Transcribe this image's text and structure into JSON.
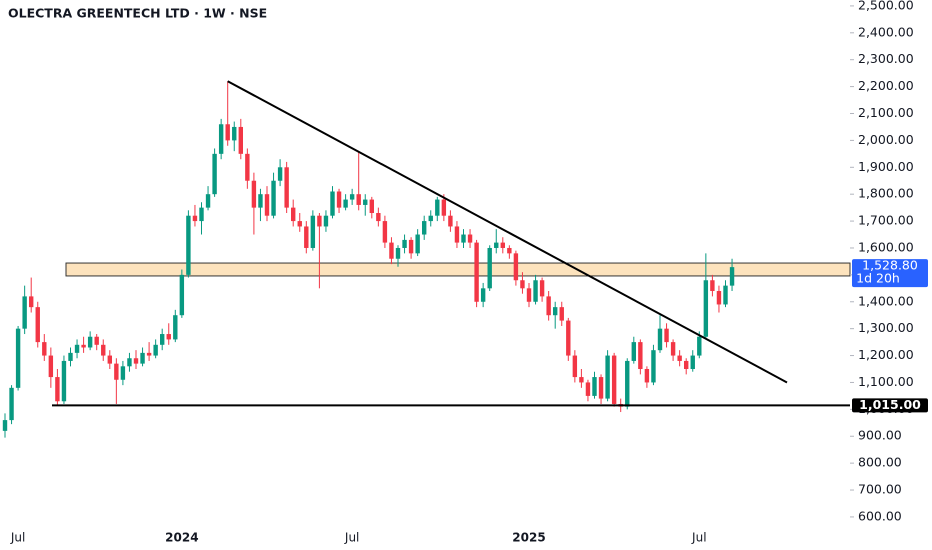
{
  "chart_data": {
    "type": "candlestick",
    "title": "OLECTRA GREENTECH LTD · 1W · NSE",
    "up_color": "#089981",
    "down_color": "#f23645",
    "categories": [
      null,
      null,
      "Jul",
      null,
      null,
      null,
      null,
      null,
      null,
      null,
      null,
      null,
      null,
      null,
      null,
      null,
      null,
      null,
      null,
      null,
      null,
      null,
      null,
      null,
      null,
      null,
      null,
      "2024",
      null,
      null,
      null,
      null,
      null,
      null,
      null,
      null,
      null,
      null,
      null,
      null,
      null,
      null,
      null,
      null,
      null,
      null,
      null,
      null,
      null,
      null,
      null,
      null,
      null,
      "Jul",
      null,
      null,
      null,
      null,
      null,
      null,
      null,
      null,
      null,
      null,
      null,
      null,
      null,
      null,
      null,
      null,
      null,
      null,
      null,
      null,
      null,
      null,
      null,
      null,
      null,
      null,
      "2025",
      null,
      null,
      null,
      null,
      null,
      null,
      null,
      null,
      null,
      null,
      null,
      null,
      null,
      null,
      null,
      null,
      null,
      null,
      null,
      null,
      null,
      null,
      null,
      null,
      null,
      "Jul",
      null,
      null,
      null,
      null,
      null
    ],
    "ohlc": [
      [
        920,
        985,
        895,
        960
      ],
      [
        960,
        1090,
        945,
        1080
      ],
      [
        1080,
        1310,
        1070,
        1300
      ],
      [
        1300,
        1460,
        1280,
        1420
      ],
      [
        1420,
        1490,
        1360,
        1380
      ],
      [
        1380,
        1400,
        1230,
        1250
      ],
      [
        1250,
        1280,
        1180,
        1200
      ],
      [
        1200,
        1230,
        1080,
        1120
      ],
      [
        1120,
        1150,
        1015,
        1030
      ],
      [
        1030,
        1200,
        1020,
        1180
      ],
      [
        1180,
        1230,
        1160,
        1210
      ],
      [
        1210,
        1260,
        1190,
        1240
      ],
      [
        1240,
        1270,
        1210,
        1230
      ],
      [
        1230,
        1290,
        1220,
        1270
      ],
      [
        1270,
        1280,
        1220,
        1240
      ],
      [
        1240,
        1260,
        1180,
        1200
      ],
      [
        1200,
        1220,
        1150,
        1170
      ],
      [
        1170,
        1190,
        1020,
        1110
      ],
      [
        1110,
        1180,
        1090,
        1160
      ],
      [
        1160,
        1210,
        1140,
        1190
      ],
      [
        1190,
        1220,
        1150,
        1170
      ],
      [
        1170,
        1230,
        1160,
        1210
      ],
      [
        1210,
        1250,
        1180,
        1200
      ],
      [
        1200,
        1260,
        1190,
        1240
      ],
      [
        1240,
        1300,
        1220,
        1280
      ],
      [
        1280,
        1320,
        1240,
        1260
      ],
      [
        1260,
        1370,
        1250,
        1350
      ],
      [
        1350,
        1520,
        1340,
        1500
      ],
      [
        1500,
        1740,
        1490,
        1720
      ],
      [
        1720,
        1760,
        1680,
        1700
      ],
      [
        1700,
        1770,
        1650,
        1750
      ],
      [
        1750,
        1830,
        1740,
        1800
      ],
      [
        1800,
        1970,
        1790,
        1950
      ],
      [
        1950,
        2080,
        1930,
        2060
      ],
      [
        2060,
        2220,
        1980,
        2000
      ],
      [
        2000,
        2070,
        1960,
        2050
      ],
      [
        2050,
        2080,
        1930,
        1950
      ],
      [
        1950,
        1970,
        1820,
        1850
      ],
      [
        1850,
        1880,
        1650,
        1750
      ],
      [
        1750,
        1820,
        1700,
        1800
      ],
      [
        1800,
        1830,
        1700,
        1720
      ],
      [
        1720,
        1880,
        1710,
        1850
      ],
      [
        1850,
        1930,
        1830,
        1900
      ],
      [
        1900,
        1920,
        1730,
        1750
      ],
      [
        1750,
        1780,
        1680,
        1700
      ],
      [
        1700,
        1730,
        1660,
        1680
      ],
      [
        1680,
        1700,
        1580,
        1600
      ],
      [
        1600,
        1740,
        1590,
        1720
      ],
      [
        1720,
        1730,
        1450,
        1680
      ],
      [
        1680,
        1740,
        1660,
        1720
      ],
      [
        1720,
        1830,
        1710,
        1810
      ],
      [
        1810,
        1820,
        1730,
        1750
      ],
      [
        1750,
        1800,
        1740,
        1780
      ],
      [
        1780,
        1820,
        1760,
        1800
      ],
      [
        1800,
        1960,
        1740,
        1760
      ],
      [
        1760,
        1800,
        1720,
        1780
      ],
      [
        1780,
        1790,
        1710,
        1730
      ],
      [
        1730,
        1750,
        1680,
        1700
      ],
      [
        1700,
        1720,
        1600,
        1620
      ],
      [
        1620,
        1640,
        1540,
        1560
      ],
      [
        1560,
        1610,
        1530,
        1600
      ],
      [
        1600,
        1650,
        1580,
        1630
      ],
      [
        1630,
        1640,
        1560,
        1580
      ],
      [
        1580,
        1670,
        1570,
        1650
      ],
      [
        1650,
        1720,
        1630,
        1700
      ],
      [
        1700,
        1740,
        1680,
        1720
      ],
      [
        1720,
        1790,
        1700,
        1780
      ],
      [
        1780,
        1800,
        1700,
        1720
      ],
      [
        1720,
        1740,
        1660,
        1680
      ],
      [
        1680,
        1700,
        1600,
        1620
      ],
      [
        1620,
        1670,
        1600,
        1650
      ],
      [
        1650,
        1670,
        1600,
        1620
      ],
      [
        1620,
        1630,
        1380,
        1400
      ],
      [
        1400,
        1470,
        1380,
        1450
      ],
      [
        1450,
        1610,
        1440,
        1600
      ],
      [
        1600,
        1670,
        1580,
        1620
      ],
      [
        1620,
        1640,
        1580,
        1600
      ],
      [
        1600,
        1610,
        1560,
        1580
      ],
      [
        1580,
        1590,
        1460,
        1480
      ],
      [
        1480,
        1510,
        1430,
        1450
      ],
      [
        1450,
        1470,
        1380,
        1400
      ],
      [
        1400,
        1500,
        1390,
        1480
      ],
      [
        1480,
        1490,
        1400,
        1420
      ],
      [
        1420,
        1440,
        1330,
        1350
      ],
      [
        1350,
        1400,
        1300,
        1380
      ],
      [
        1380,
        1400,
        1310,
        1330
      ],
      [
        1330,
        1340,
        1180,
        1200
      ],
      [
        1200,
        1220,
        1100,
        1120
      ],
      [
        1120,
        1150,
        1080,
        1100
      ],
      [
        1100,
        1110,
        1030,
        1050
      ],
      [
        1050,
        1140,
        1040,
        1120
      ],
      [
        1120,
        1130,
        1020,
        1040
      ],
      [
        1040,
        1220,
        1030,
        1200
      ],
      [
        1200,
        1210,
        1010,
        1020
      ],
      [
        1020,
        1040,
        990,
        1010
      ],
      [
        1010,
        1190,
        1000,
        1180
      ],
      [
        1180,
        1270,
        1170,
        1250
      ],
      [
        1250,
        1260,
        1130,
        1150
      ],
      [
        1150,
        1160,
        1080,
        1100
      ],
      [
        1100,
        1240,
        1090,
        1220
      ],
      [
        1220,
        1350,
        1210,
        1300
      ],
      [
        1300,
        1320,
        1230,
        1250
      ],
      [
        1250,
        1260,
        1180,
        1200
      ],
      [
        1200,
        1220,
        1160,
        1180
      ],
      [
        1180,
        1190,
        1130,
        1150
      ],
      [
        1150,
        1220,
        1140,
        1200
      ],
      [
        1200,
        1290,
        1190,
        1270
      ],
      [
        1270,
        1580,
        1260,
        1480
      ],
      [
        1480,
        1500,
        1420,
        1440
      ],
      [
        1440,
        1460,
        1360,
        1390
      ],
      [
        1390,
        1480,
        1380,
        1460
      ],
      [
        1460,
        1560,
        1440,
        1528.8
      ]
    ],
    "ylim": [
      570,
      2522
    ],
    "yticks": [
      {
        "value": 600,
        "label": "600.00"
      },
      {
        "value": 700,
        "label": "700.00"
      },
      {
        "value": 800,
        "label": "800.00"
      },
      {
        "value": 900,
        "label": "900.00"
      },
      {
        "value": 1000,
        "label": "1,000.00"
      },
      {
        "value": 1100,
        "label": "1,100.00"
      },
      {
        "value": 1200,
        "label": "1,200.00"
      },
      {
        "value": 1300,
        "label": "1,300.00"
      },
      {
        "value": 1400,
        "label": "1,400.00"
      },
      {
        "value": 1500,
        "label": "1,500.00"
      },
      {
        "value": 1600,
        "label": "1,600.00"
      },
      {
        "value": 1700,
        "label": "1,700.00"
      },
      {
        "value": 1800,
        "label": "1,800.00"
      },
      {
        "value": 1900,
        "label": "1,900.00"
      },
      {
        "value": 2000,
        "label": "2,000.00"
      },
      {
        "value": 2100,
        "label": "2,100.00"
      },
      {
        "value": 2200,
        "label": "2,200.00"
      },
      {
        "value": 2300,
        "label": "2,300.00"
      },
      {
        "value": 2400,
        "label": "2,400.00"
      },
      {
        "value": 2500,
        "label": "2,500.00"
      }
    ],
    "last_price_label": "1,528.80",
    "countdown": "1d 20h",
    "last_price_color": "#2962ff",
    "support": {
      "value": 1015,
      "label": "1,015.00"
    },
    "zone": [
      1496,
      1544
    ],
    "zone_color": "#fde3bd",
    "trendline": [
      2220,
      1100
    ]
  }
}
